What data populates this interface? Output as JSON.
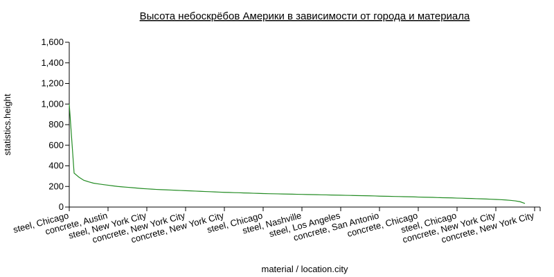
{
  "chart_data": {
    "type": "line",
    "title": "Высота небоскрёбов Америки в зависимости от города и материала",
    "x_label": "material / location.city",
    "y_label": "statistics.height",
    "color": "#228b22",
    "ylim": [
      0,
      1600
    ],
    "yticks": [
      0,
      200,
      400,
      600,
      800,
      {
        "value": 1000,
        "label": "1,000"
      },
      {
        "value": 1200,
        "label": "1,200"
      },
      {
        "value": 1400,
        "label": "1,400"
      },
      {
        "value": 1600,
        "label": "1,600"
      }
    ],
    "categories": [
      "steel, Chicago",
      null,
      null,
      null,
      null,
      null,
      null,
      null,
      "concrete, Austin",
      null,
      null,
      null,
      null,
      null,
      null,
      null,
      "steel, New York City",
      null,
      null,
      null,
      null,
      null,
      null,
      null,
      "concrete, New York City",
      null,
      null,
      null,
      null,
      null,
      null,
      null,
      "concrete, New York City",
      null,
      null,
      null,
      null,
      null,
      null,
      null,
      "steel, Chicago",
      null,
      null,
      null,
      null,
      null,
      null,
      null,
      "steel, Nashville",
      null,
      null,
      null,
      null,
      null,
      null,
      null,
      "steel, Los Angeles",
      null,
      null,
      null,
      null,
      null,
      null,
      null,
      "concrete, San Antonio",
      null,
      null,
      null,
      null,
      null,
      null,
      null,
      "concrete, Chicago",
      null,
      null,
      null,
      null,
      null,
      null,
      null,
      "steel, Chicago",
      null,
      null,
      null,
      null,
      null,
      null,
      null,
      "concrete, New York City",
      null,
      null,
      null,
      null,
      null,
      null,
      null,
      "concrete, New York City"
    ],
    "values": [
      1000,
      330,
      290,
      260,
      245,
      232,
      225,
      218,
      212,
      206,
      200,
      196,
      192,
      188,
      184,
      180,
      177,
      174,
      171,
      169,
      167,
      165,
      163,
      161,
      159,
      157,
      155,
      153,
      151,
      149,
      147,
      145,
      143,
      142,
      140,
      139,
      137,
      136,
      134,
      133,
      131,
      130,
      129,
      128,
      127,
      126,
      125,
      124,
      123,
      122,
      121,
      120,
      119,
      118,
      117,
      116,
      115,
      114,
      113,
      112,
      111,
      110,
      109,
      108,
      106,
      105,
      104,
      103,
      102,
      101,
      100,
      99,
      97,
      96,
      95,
      94,
      92,
      91,
      90,
      89,
      87,
      86,
      84,
      83,
      81,
      80,
      78,
      76,
      74,
      72,
      69,
      65,
      60,
      52,
      35,
      null,
      null
    ]
  }
}
